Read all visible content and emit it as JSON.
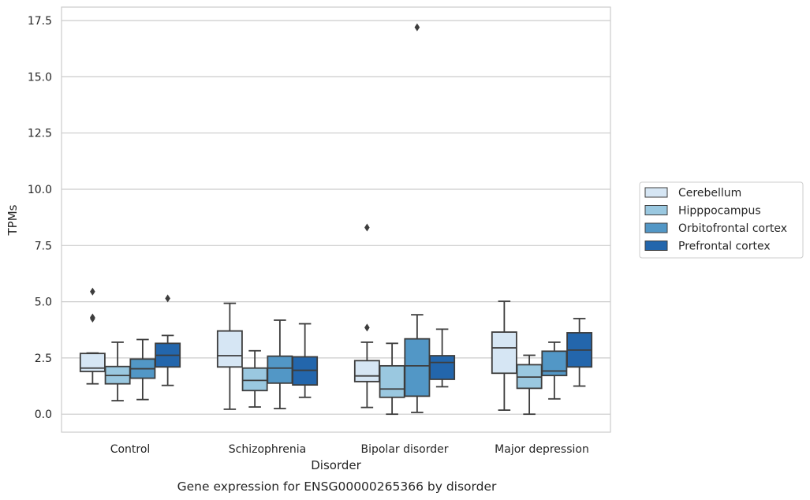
{
  "chart_data": {
    "type": "box",
    "caption": "Gene expression for ENSG00000265366 by disorder",
    "xlabel": "Disorder",
    "ylabel": "TPMs",
    "ylim": [
      -0.8,
      18.1
    ],
    "yticks": [
      "0.0",
      "2.5",
      "5.0",
      "7.5",
      "10.0",
      "12.5",
      "15.0",
      "17.5"
    ],
    "grid": true,
    "legend_position": "right",
    "categories": [
      "Control",
      "Schizophrenia",
      "Bipolar disorder",
      "Major depression"
    ],
    "series": [
      {
        "name": "Cerebellum",
        "color": "#d6e6f4",
        "boxes": [
          {
            "whislo": 1.35,
            "q1": 1.9,
            "med": 2.05,
            "q3": 2.7,
            "whishi": 2.72,
            "fliers": [
              5.45,
              4.3,
              4.25
            ]
          },
          {
            "whislo": 0.22,
            "q1": 2.1,
            "med": 2.6,
            "q3": 3.7,
            "whishi": 4.93,
            "fliers": []
          },
          {
            "whislo": 0.3,
            "q1": 1.45,
            "med": 1.7,
            "q3": 2.38,
            "whishi": 3.2,
            "fliers": [
              8.3,
              3.85
            ]
          },
          {
            "whislo": 0.18,
            "q1": 1.82,
            "med": 2.95,
            "q3": 3.65,
            "whishi": 5.02,
            "fliers": []
          }
        ]
      },
      {
        "name": "Hipppocampus",
        "color": "#9ac8e0",
        "boxes": [
          {
            "whislo": 0.6,
            "q1": 1.35,
            "med": 1.72,
            "q3": 2.12,
            "whishi": 3.2,
            "fliers": []
          },
          {
            "whislo": 0.32,
            "q1": 1.05,
            "med": 1.5,
            "q3": 2.05,
            "whishi": 2.82,
            "fliers": []
          },
          {
            "whislo": 0.0,
            "q1": 0.75,
            "med": 1.12,
            "q3": 2.15,
            "whishi": 3.15,
            "fliers": []
          },
          {
            "whislo": 0.0,
            "q1": 1.15,
            "med": 1.65,
            "q3": 2.2,
            "whishi": 2.62,
            "fliers": []
          }
        ]
      },
      {
        "name": "Orbitofrontal cortex",
        "color": "#5297c6",
        "boxes": [
          {
            "whislo": 0.65,
            "q1": 1.6,
            "med": 2.02,
            "q3": 2.45,
            "whishi": 3.32,
            "fliers": []
          },
          {
            "whislo": 0.25,
            "q1": 1.38,
            "med": 2.05,
            "q3": 2.58,
            "whishi": 4.18,
            "fliers": []
          },
          {
            "whislo": 0.08,
            "q1": 0.8,
            "med": 2.15,
            "q3": 3.35,
            "whishi": 4.42,
            "fliers": [
              17.2
            ]
          },
          {
            "whislo": 0.68,
            "q1": 1.72,
            "med": 1.92,
            "q3": 2.8,
            "whishi": 3.2,
            "fliers": []
          }
        ]
      },
      {
        "name": "Prefrontal cortex",
        "color": "#2366ac",
        "boxes": [
          {
            "whislo": 1.28,
            "q1": 2.1,
            "med": 2.62,
            "q3": 3.15,
            "whishi": 3.5,
            "fliers": [
              5.15
            ]
          },
          {
            "whislo": 0.75,
            "q1": 1.3,
            "med": 1.95,
            "q3": 2.55,
            "whishi": 4.02,
            "fliers": []
          },
          {
            "whislo": 1.22,
            "q1": 1.55,
            "med": 2.3,
            "q3": 2.6,
            "whishi": 3.78,
            "fliers": []
          },
          {
            "whislo": 1.25,
            "q1": 2.1,
            "med": 2.85,
            "q3": 3.62,
            "whishi": 4.25,
            "fliers": []
          }
        ]
      }
    ]
  }
}
